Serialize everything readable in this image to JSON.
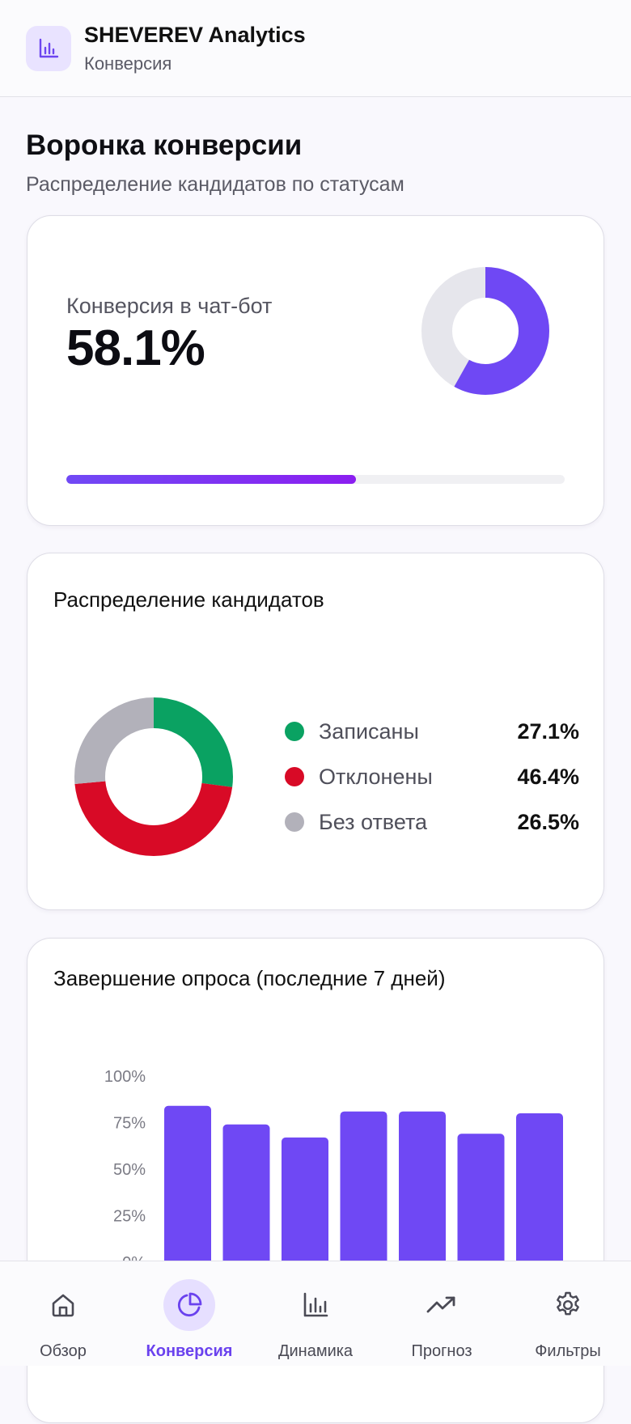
{
  "header": {
    "app_title": "SHEVEREV Analytics",
    "subtitle": "Конверсия",
    "logo_icon": "bar-chart-icon"
  },
  "section": {
    "title": "Воронка конверсии",
    "subtitle": "Распределение кандидатов по статусам"
  },
  "conversion_card": {
    "label": "Конверсия в чат-бот",
    "value": "58.1%",
    "fraction": 0.581,
    "accent": "#6f48f4",
    "track": "#e6e6ec"
  },
  "distribution_card": {
    "title": "Распределение кандидатов",
    "items": [
      {
        "name": "Записаны",
        "value": "27.1%",
        "share": 27.1,
        "color": "#0aa262"
      },
      {
        "name": "Отклонены",
        "value": "46.4%",
        "share": 46.4,
        "color": "#d80a26"
      },
      {
        "name": "Без ответа",
        "value": "26.5%",
        "share": 26.5,
        "color": "#b2b1ba"
      }
    ]
  },
  "survey_card": {
    "title": "Завершение опроса (последние 7 дней)"
  },
  "chart_data": {
    "type": "bar",
    "title": "Завершение опроса (последние 7 дней)",
    "y_tick_labels": [
      "100%",
      "75%",
      "50%",
      "25%",
      "0%"
    ],
    "ylim": [
      0,
      100
    ],
    "values": [
      84,
      74,
      67,
      81,
      81,
      69,
      80
    ],
    "color": "#6f48f4",
    "grid": false
  },
  "nav": {
    "items": [
      {
        "label": "Обзор",
        "icon": "home-icon",
        "active": false
      },
      {
        "label": "Конверсия",
        "icon": "pie-chart-icon",
        "active": true
      },
      {
        "label": "Динамика",
        "icon": "bar-chart-icon",
        "active": false
      },
      {
        "label": "Прогноз",
        "icon": "trend-up-icon",
        "active": false
      },
      {
        "label": "Фильтры",
        "icon": "gear-icon",
        "active": false
      }
    ]
  }
}
